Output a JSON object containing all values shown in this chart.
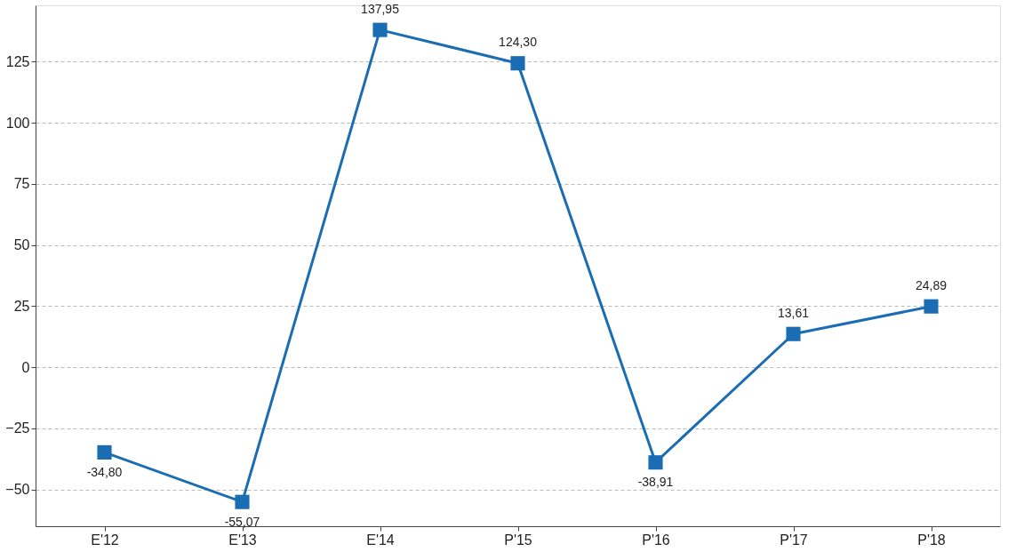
{
  "chart_data": {
    "type": "line",
    "categories": [
      "E'12",
      "E'13",
      "E'14",
      "P'15",
      "P'16",
      "P'17",
      "P'18"
    ],
    "series": [
      {
        "color": "#1a6db3",
        "values": [
          -34.8,
          -55.07,
          137.95,
          124.3,
          -38.91,
          13.61,
          24.89
        ],
        "value_labels": [
          "-34,80",
          "-55,07",
          "137,95",
          "124,30",
          "-38,91",
          "13,61",
          "24,89"
        ]
      }
    ],
    "ylim": [
      -65,
      148
    ],
    "yticks": [
      -50,
      -25,
      0,
      25,
      50,
      75,
      100,
      125
    ],
    "grid": "y",
    "marker": "square",
    "line_style": "solid"
  }
}
